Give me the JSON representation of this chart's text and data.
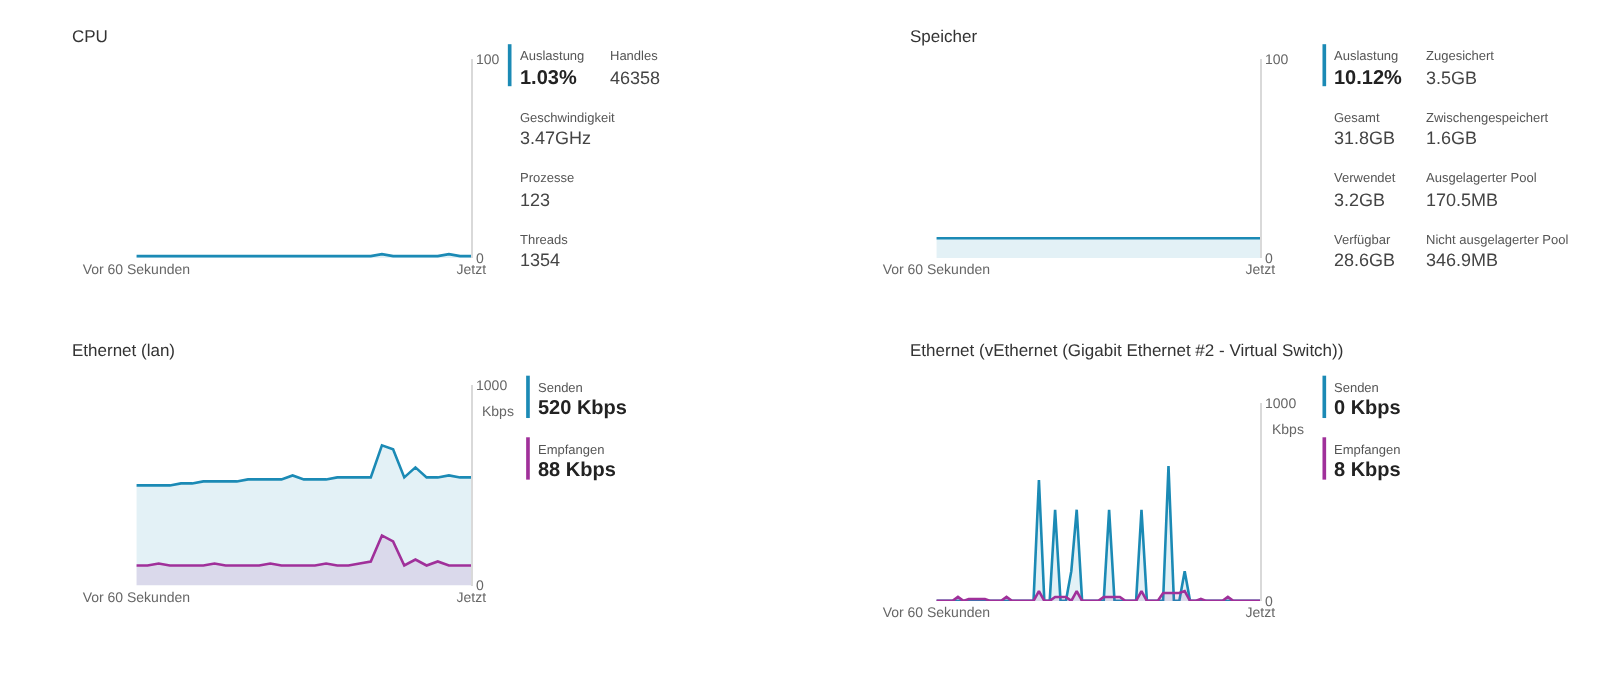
{
  "chart_data": [
    {
      "type": "area",
      "title": "CPU",
      "ylim": [
        0,
        100
      ],
      "yticks": [
        0,
        100
      ],
      "categories": [
        "Vor 60 Sekunden",
        null,
        null,
        null,
        null,
        null,
        null,
        null,
        null,
        null,
        null,
        null,
        null,
        null,
        null,
        null,
        null,
        null,
        null,
        null,
        null,
        null,
        null,
        null,
        null,
        null,
        null,
        null,
        null,
        null,
        "Jetzt"
      ],
      "series": [
        {
          "name": "Auslastung",
          "color": "#1b8ab5",
          "values": [
            1,
            1,
            1,
            1,
            1,
            1,
            1,
            1,
            1,
            1,
            1,
            1,
            1,
            1,
            1,
            1,
            1,
            1,
            1,
            1,
            1,
            1,
            2,
            1,
            1,
            1,
            1,
            1,
            2,
            1,
            1
          ]
        }
      ],
      "annotations": [
        "1.03%",
        "Geschwindigkeit",
        "3.47GHz",
        "Prozesse",
        "123",
        "Threads",
        "1354",
        "Handles",
        "46358"
      ]
    },
    {
      "type": "area",
      "title": "Speicher",
      "ylim": [
        0,
        100
      ],
      "yticks": [
        0,
        100
      ],
      "categories": [
        "Vor 60 Sekunden",
        null,
        null,
        null,
        null,
        null,
        null,
        null,
        null,
        null,
        null,
        null,
        null,
        null,
        null,
        null,
        null,
        null,
        null,
        null,
        null,
        null,
        null,
        null,
        null,
        null,
        null,
        null,
        null,
        null,
        "Jetzt"
      ],
      "series": [
        {
          "name": "Auslastung",
          "color": "#1b8ab5",
          "values": [
            10,
            10,
            10,
            10,
            10,
            10,
            10,
            10,
            10,
            10,
            10,
            10,
            10,
            10,
            10,
            10,
            10,
            10,
            10,
            10,
            10,
            10,
            10,
            10,
            10,
            10,
            10,
            10,
            10,
            10,
            10
          ]
        }
      ],
      "annotations": [
        "10.12%",
        "Gesamt",
        "31.8GB",
        "Verwendet",
        "3.2GB",
        "Verfügbar",
        "28.6GB",
        "Zugesichert",
        "3.5GB",
        "Zwischengespeichert",
        "1.6GB",
        "Ausgelagerter Pool",
        "170.5MB",
        "Nicht ausgelagerter Pool",
        "346.9MB"
      ]
    },
    {
      "type": "area",
      "title": "Ethernet (lan)",
      "ylabel": "Kbps",
      "ylim": [
        0,
        1000
      ],
      "yticks": [
        0,
        1000
      ],
      "categories": [
        "Vor 60 Sekunden",
        null,
        null,
        null,
        null,
        null,
        null,
        null,
        null,
        null,
        null,
        null,
        null,
        null,
        null,
        null,
        null,
        null,
        null,
        null,
        null,
        null,
        null,
        null,
        null,
        null,
        null,
        null,
        null,
        null,
        "Jetzt"
      ],
      "series": [
        {
          "name": "Senden",
          "color": "#1b8ab5",
          "values": [
            500,
            500,
            500,
            500,
            510,
            510,
            520,
            520,
            520,
            520,
            530,
            530,
            530,
            530,
            550,
            530,
            530,
            530,
            540,
            540,
            540,
            540,
            700,
            680,
            540,
            590,
            540,
            540,
            550,
            540,
            540
          ]
        },
        {
          "name": "Empfangen",
          "color": "#a0309a",
          "values": [
            100,
            100,
            110,
            100,
            100,
            100,
            100,
            110,
            100,
            100,
            100,
            100,
            110,
            100,
            100,
            100,
            100,
            110,
            100,
            100,
            110,
            120,
            250,
            220,
            100,
            130,
            100,
            120,
            100,
            100,
            100
          ]
        }
      ],
      "annotations": [
        "520 Kbps",
        "88 Kbps"
      ]
    },
    {
      "type": "area",
      "title": "Ethernet (vEthernet (Gigabit Ethernet #2 - Virtual Switch))",
      "ylabel": "Kbps",
      "ylim": [
        0,
        1000
      ],
      "yticks": [
        0,
        1000
      ],
      "categories": [
        "Vor 60 Sekunden",
        null,
        null,
        null,
        null,
        null,
        null,
        null,
        null,
        null,
        null,
        null,
        null,
        null,
        null,
        null,
        null,
        null,
        null,
        null,
        null,
        null,
        null,
        null,
        null,
        null,
        null,
        null,
        null,
        null,
        null,
        null,
        null,
        null,
        null,
        null,
        null,
        null,
        null,
        null,
        null,
        null,
        null,
        null,
        null,
        null,
        null,
        null,
        null,
        null,
        null,
        null,
        null,
        null,
        null,
        null,
        null,
        null,
        null,
        null,
        "Jetzt"
      ],
      "series": [
        {
          "name": "Senden",
          "color": "#1b8ab5",
          "values": [
            0,
            0,
            0,
            0,
            0,
            0,
            0,
            0,
            0,
            0,
            0,
            0,
            0,
            0,
            0,
            0,
            0,
            0,
            0,
            610,
            0,
            0,
            460,
            0,
            0,
            150,
            460,
            0,
            0,
            0,
            0,
            0,
            460,
            0,
            0,
            0,
            0,
            0,
            460,
            0,
            0,
            0,
            0,
            680,
            0,
            0,
            150,
            0,
            0,
            0,
            0,
            0,
            0,
            0,
            0,
            0,
            0,
            0,
            0,
            0,
            0
          ]
        },
        {
          "name": "Empfangen",
          "color": "#a0309a",
          "values": [
            0,
            0,
            0,
            0,
            20,
            0,
            10,
            10,
            10,
            10,
            0,
            0,
            0,
            20,
            0,
            0,
            0,
            0,
            0,
            50,
            0,
            0,
            20,
            20,
            20,
            0,
            50,
            0,
            0,
            0,
            0,
            20,
            20,
            20,
            20,
            0,
            0,
            0,
            50,
            0,
            0,
            0,
            40,
            40,
            40,
            40,
            50,
            0,
            0,
            10,
            0,
            0,
            0,
            0,
            20,
            0,
            0,
            0,
            0,
            0,
            0
          ]
        }
      ],
      "annotations": [
        "0 Kbps",
        "8 Kbps"
      ]
    }
  ]
}
